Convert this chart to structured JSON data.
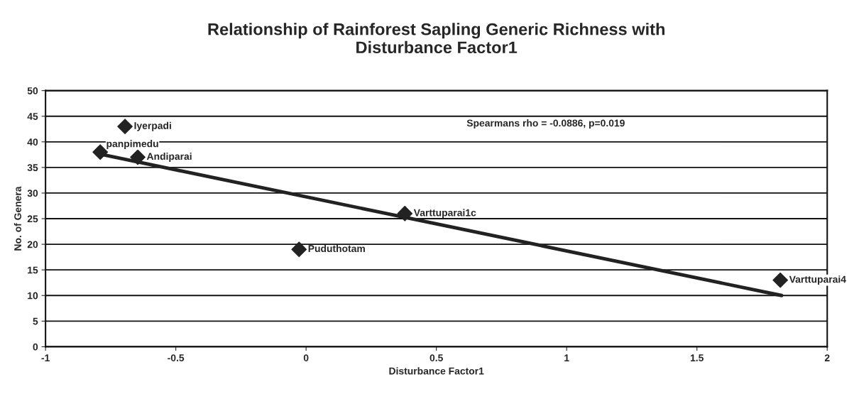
{
  "chart_data": {
    "type": "scatter",
    "title": "Relationship of Rainforest Sapling Generic Richness with\nDisturbance Factor1",
    "xlabel": "Disturbance Factor1",
    "ylabel": "No. of Genera",
    "series": [
      {
        "color": "#222222",
        "marker": "diamond",
        "x": [
          -0.695,
          -0.79,
          -0.646,
          -0.027,
          0.379,
          1.82
        ],
        "values": [
          43,
          38,
          37,
          19,
          26,
          13
        ]
      },
      {
        "type": "line",
        "color": "#222222",
        "marker": "none",
        "x": [
          -0.79,
          1.825
        ],
        "values": [
          37.6,
          10
        ]
      }
    ],
    "annotations": [
      {
        "text": "Iyerpadi",
        "x": -0.695,
        "y": 43
      },
      {
        "text": "panpimedu",
        "x": -0.79,
        "y": 38
      },
      {
        "text": "Andiparai",
        "x": -0.646,
        "y": 37
      },
      {
        "text": "Puduthotam",
        "x": -0.027,
        "y": 19
      },
      {
        "text": "Varttuparai1c",
        "x": 0.379,
        "y": 26
      },
      {
        "text": "Varttuparai4",
        "x": 1.82,
        "y": 13
      },
      "Spearmans rho = -0.0886, p=0.019"
    ],
    "xlim": [
      -1,
      2
    ],
    "xticks": [
      -1,
      -0.5,
      0,
      0.5,
      1,
      1.5,
      2
    ],
    "ylim": [
      0,
      50
    ],
    "yticks": [
      0,
      5,
      10,
      15,
      20,
      25,
      30,
      35,
      40,
      45,
      50
    ],
    "grid": "y",
    "legend": false
  }
}
